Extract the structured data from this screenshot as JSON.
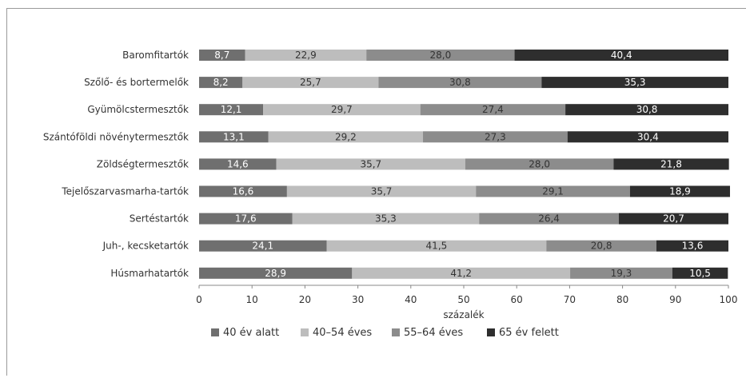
{
  "chart_data": {
    "type": "bar",
    "orientation": "horizontal",
    "stacked": true,
    "categories": [
      "Baromfitartók",
      "Szőlő- és bortermelők",
      "Gyümölcstermesztők",
      "Szántóföldi növénytermesztők",
      "Zöldségtermesztők",
      "Tejelőszarvasmarha-tartók",
      "Sertéstartók",
      "Juh-, kecsketartók",
      "Húsmarhatartók"
    ],
    "series": [
      {
        "name": "40 év alatt",
        "color": "#6f6f6f",
        "label_color": "#ffffff",
        "values": [
          8.7,
          8.2,
          12.1,
          13.1,
          14.6,
          16.6,
          17.6,
          24.1,
          28.9
        ],
        "labels": [
          "8,7",
          "8,2",
          "12,1",
          "13,1",
          "14,6",
          "16,6",
          "17,6",
          "24,1",
          "28,9"
        ]
      },
      {
        "name": "40–54 éves",
        "color": "#bdbdbd",
        "label_color": "#333333",
        "values": [
          22.9,
          25.7,
          29.7,
          29.2,
          35.7,
          35.7,
          35.3,
          41.5,
          41.2
        ],
        "labels": [
          "22,9",
          "25,7",
          "29,7",
          "29,2",
          "35,7",
          "35,7",
          "35,3",
          "41,5",
          "41,2"
        ]
      },
      {
        "name": "55–64 éves",
        "color": "#8c8c8c",
        "label_color": "#333333",
        "values": [
          28.0,
          30.8,
          27.4,
          27.3,
          28.0,
          29.1,
          26.4,
          20.8,
          19.3
        ],
        "labels": [
          "28,0",
          "30,8",
          "27,4",
          "27,3",
          "28,0",
          "29,1",
          "26,4",
          "20,8",
          "19,3"
        ]
      },
      {
        "name": "65 év felett",
        "color": "#2e2e2e",
        "label_color": "#ffffff",
        "values": [
          40.4,
          35.3,
          30.8,
          30.4,
          21.8,
          18.9,
          20.7,
          13.6,
          10.5
        ],
        "labels": [
          "40,4",
          "35,3",
          "30,8",
          "30,4",
          "21,8",
          "18,9",
          "20,7",
          "13,6",
          "10,5"
        ]
      }
    ],
    "xlabel": "százalék",
    "xlim": [
      0,
      100
    ],
    "xticks": [
      "0",
      "10",
      "20",
      "30",
      "40",
      "50",
      "60",
      "70",
      "80",
      "90",
      "100"
    ],
    "grid": false,
    "legend_position": "bottom"
  }
}
